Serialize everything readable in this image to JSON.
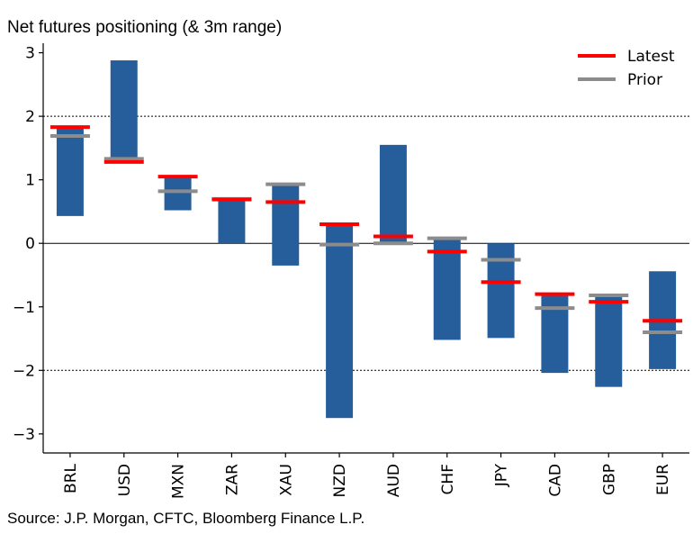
{
  "header": {
    "subtitle": "Net futures positioning (& 3m range)"
  },
  "footer": {
    "source": "Source: J.P. Morgan, CFTC, Bloomberg Finance L.P."
  },
  "colors": {
    "bar": "#255e9b",
    "latest": "#ff0000",
    "prior": "#8c8c8c",
    "axis": "#000000"
  },
  "chart_data": {
    "type": "bar",
    "title": "",
    "subtitle": "Net futures positioning (& 3m range)",
    "categories": [
      "BRL",
      "USD",
      "MXN",
      "ZAR",
      "XAU",
      "NZD",
      "AUD",
      "CHF",
      "JPY",
      "CAD",
      "GBP",
      "EUR"
    ],
    "range_low": [
      0.43,
      1.3,
      0.52,
      0.0,
      -0.35,
      -2.75,
      0.0,
      -1.52,
      -1.49,
      -2.04,
      -2.26,
      -1.98
    ],
    "range_high": [
      1.83,
      2.88,
      1.05,
      0.7,
      0.93,
      0.3,
      1.55,
      0.08,
      0.0,
      -0.8,
      -0.82,
      -0.44
    ],
    "series": [
      {
        "name": "Latest",
        "values": [
          1.83,
          1.28,
          1.05,
          0.69,
          0.65,
          0.3,
          0.11,
          -0.13,
          -0.61,
          -0.8,
          -0.92,
          -1.22
        ]
      },
      {
        "name": "Prior",
        "values": [
          1.69,
          1.33,
          0.82,
          0.7,
          0.93,
          -0.02,
          0.0,
          0.08,
          -0.26,
          -1.02,
          -0.82,
          -1.4
        ]
      }
    ],
    "ylim": [
      -3.3,
      3.15
    ],
    "yticks": [
      "−3",
      "−2",
      "−1",
      "0",
      "1",
      "2",
      "3"
    ],
    "ytick_values": [
      -3,
      -2,
      -1,
      0,
      1,
      2,
      3
    ],
    "reference_lines": [
      2,
      -2
    ],
    "legend": {
      "position": "top-right",
      "entries": [
        "Latest",
        "Prior"
      ]
    },
    "xlabel": "",
    "ylabel": ""
  }
}
